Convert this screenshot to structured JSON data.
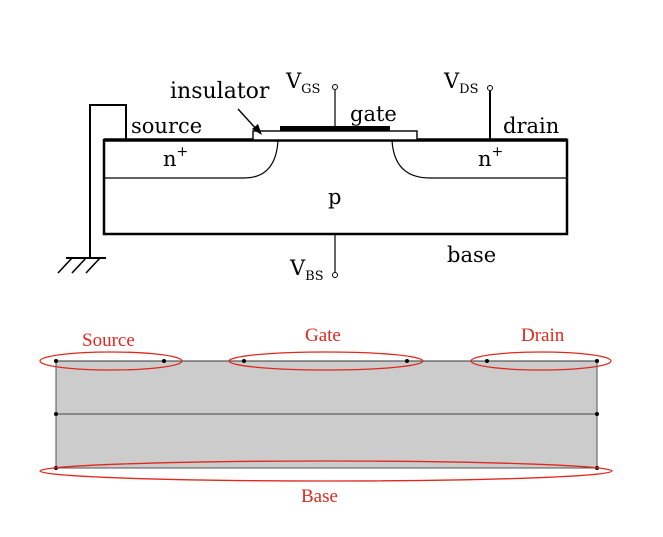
{
  "mosfet": {
    "labels": {
      "insulator": "insulator",
      "gate": "gate",
      "source": "source",
      "drain": "drain",
      "base": "base",
      "substrate": "p",
      "n_left": "n",
      "n_right": "n",
      "n_superscript": "+"
    },
    "voltages": {
      "vgs": {
        "main": "V",
        "sub": "GS"
      },
      "vds": {
        "main": "V",
        "sub": "DS"
      },
      "vbs": {
        "main": "V",
        "sub": "BS"
      }
    }
  },
  "mesh": {
    "labels": {
      "source": "Source",
      "gate": "Gate",
      "drain": "Drain",
      "base": "Base"
    },
    "colors": {
      "fill": "#cccccc",
      "highlight": "#e0281e"
    }
  }
}
